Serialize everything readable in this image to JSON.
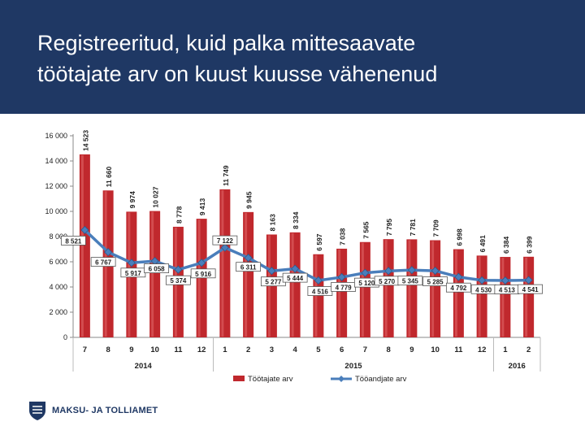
{
  "slide": {
    "title": "Registreeritud, kuid palka mittesaavate\ntöötajate arv on kuust kuusse vähenenud"
  },
  "footer": {
    "org_name": "MAKSU- JA TOLLIAMET"
  },
  "colors": {
    "header_bg": "#1f3864",
    "bar": "#c0282d",
    "line": "#4a7ebb"
  },
  "chart_data": {
    "type": "bar",
    "title": "",
    "xlabel": "",
    "ylabel": "",
    "ylim": [
      0,
      16000
    ],
    "yticks": [
      "0",
      "2 000",
      "4 000",
      "6 000",
      "8 000",
      "10 000",
      "12 000",
      "14 000",
      "16 000"
    ],
    "grid": false,
    "legend": "bottom",
    "categories": [
      "7",
      "8",
      "9",
      "10",
      "11",
      "12",
      "1",
      "2",
      "3",
      "4",
      "5",
      "6",
      "7",
      "8",
      "9",
      "10",
      "11",
      "12",
      "1",
      "2"
    ],
    "year_groups": [
      {
        "label": "2014",
        "count": 6
      },
      {
        "label": "2015",
        "count": 12
      },
      {
        "label": "2016",
        "count": 2
      }
    ],
    "series": [
      {
        "name": "Töötajate arv",
        "kind": "bar",
        "values": [
          14523,
          11660,
          9974,
          10027,
          8778,
          9413,
          11749,
          9945,
          8163,
          8334,
          6597,
          7038,
          7565,
          7795,
          7781,
          7709,
          6998,
          6491,
          6384,
          6399
        ],
        "labels": [
          "14 523",
          "11 660",
          "9 974",
          "10 027",
          "8 778",
          "9 413",
          "11 749",
          "9 945",
          "8 163",
          "8 334",
          "6 597",
          "7 038",
          "7 565",
          "7 795",
          "7 781",
          "7 709",
          "6 998",
          "6 491",
          "6 384",
          "6 399"
        ]
      },
      {
        "name": "Tööandjate arv",
        "kind": "line",
        "values": [
          8521,
          6767,
          5917,
          6058,
          5374,
          5916,
          7122,
          6311,
          5277,
          5444,
          4516,
          4779,
          5120,
          5270,
          5345,
          5285,
          4792,
          4530,
          4513,
          4541
        ],
        "labels": [
          "8 521",
          "6 767",
          "5 917",
          "6 058",
          "5 374",
          "5 916",
          "7 122",
          "6 311",
          "5 277",
          "5 444",
          "4 516",
          "4 779",
          "5 120",
          "5 270",
          "5 345",
          "5 285",
          "4 792",
          "4 530",
          "4 513",
          "4 541"
        ]
      }
    ]
  }
}
